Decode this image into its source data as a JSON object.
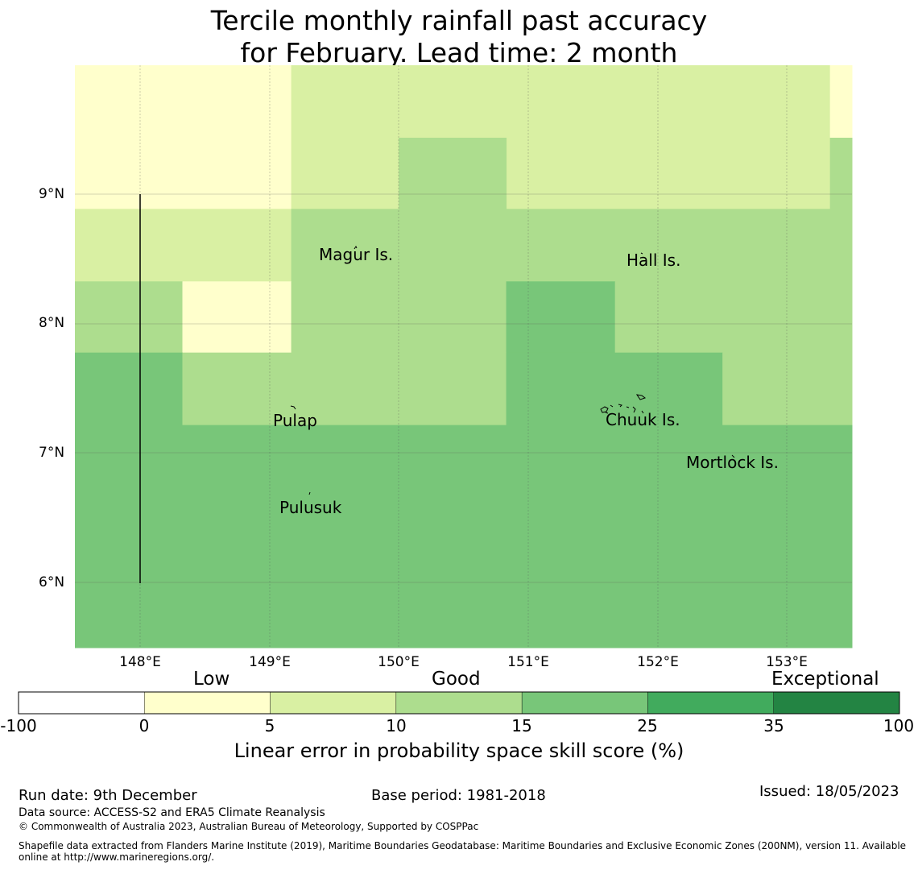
{
  "title": {
    "line1": "Tercile monthly rainfall past accuracy",
    "line2": "for February. Lead time: 2 month"
  },
  "map": {
    "lon_ticks": [
      "148°E",
      "149°E",
      "150°E",
      "151°E",
      "152°E",
      "153°E"
    ],
    "lat_ticks": [
      "9°N",
      "8°N",
      "7°N",
      "6°N"
    ],
    "places": [
      "Magur Is.",
      "Hall Is.",
      "Pulap",
      "Chuuk Is.",
      "Mortlock Is.",
      "Pulusuk"
    ],
    "cells": [
      {
        "lon": [
          147.5,
          149.17
        ],
        "lat": [
          8.89,
          10.0
        ],
        "class": 1
      },
      {
        "lon": [
          149.17,
          153.33
        ],
        "lat": [
          8.89,
          10.0
        ],
        "class": 2
      },
      {
        "lon": [
          153.33,
          153.5
        ],
        "lat": [
          9.44,
          10.0
        ],
        "class": 1
      },
      {
        "lon": [
          153.33,
          153.5
        ],
        "lat": [
          8.89,
          9.44
        ],
        "class": 3
      },
      {
        "lon": [
          150.0,
          150.83
        ],
        "lat": [
          8.89,
          9.44
        ],
        "class": 3
      },
      {
        "lon": [
          147.5,
          149.17
        ],
        "lat": [
          8.33,
          8.89
        ],
        "class": 2
      },
      {
        "lon": [
          149.17,
          153.5
        ],
        "lat": [
          8.33,
          8.89
        ],
        "class": 3
      },
      {
        "lon": [
          147.5,
          148.33
        ],
        "lat": [
          7.78,
          8.33
        ],
        "class": 3
      },
      {
        "lon": [
          148.33,
          149.17
        ],
        "lat": [
          7.78,
          8.33
        ],
        "class": 1
      },
      {
        "lon": [
          149.17,
          150.83
        ],
        "lat": [
          7.78,
          8.33
        ],
        "class": 3
      },
      {
        "lon": [
          150.83,
          151.67
        ],
        "lat": [
          7.78,
          8.33
        ],
        "class": 4
      },
      {
        "lon": [
          151.67,
          153.5
        ],
        "lat": [
          7.78,
          8.33
        ],
        "class": 3
      },
      {
        "lon": [
          147.5,
          148.33
        ],
        "lat": [
          7.22,
          7.78
        ],
        "class": 4
      },
      {
        "lon": [
          148.33,
          150.83
        ],
        "lat": [
          7.22,
          7.78
        ],
        "class": 3
      },
      {
        "lon": [
          150.83,
          152.5
        ],
        "lat": [
          7.22,
          7.78
        ],
        "class": 4
      },
      {
        "lon": [
          152.5,
          153.5
        ],
        "lat": [
          7.22,
          7.78
        ],
        "class": 3
      },
      {
        "lon": [
          147.5,
          153.5
        ],
        "lat": [
          5.5,
          7.22
        ],
        "class": 4
      }
    ],
    "extent": {
      "lon": [
        147.5,
        153.5
      ],
      "lat": [
        5.5,
        10.0
      ]
    }
  },
  "colorbar": {
    "categories": [
      "Low",
      "Good",
      "Exceptional"
    ],
    "ticks": [
      "-100",
      "0",
      "5",
      "10",
      "15",
      "25",
      "35",
      "100"
    ],
    "colors": [
      "#ffffff",
      "#ffffcc",
      "#d9f0a3",
      "#addd8e",
      "#78c679",
      "#41ab5d",
      "#238443"
    ],
    "label": "Linear error in probability space skill score (%)"
  },
  "footer": {
    "run_date": "Run date: 9th December",
    "base_period": "Base period: 1981-2018",
    "issued": "Issued: 18/05/2023",
    "data_source": "Data source: ACCESS-S2 and ERA5 Climate Reanalysis",
    "copyright": "© Commonwealth of Australia 2023, Australian Bureau of Meteorology, Supported by COSPPac",
    "shapefile_line1": "Shapefile data extracted from Flanders Marine Institute (2019), Maritime Boundaries Geodatabase: Maritime Boundaries and Exclusive Economic Zones (200NM), version 11. Available",
    "shapefile_line2": "online at http://www.marineregions.org/."
  }
}
